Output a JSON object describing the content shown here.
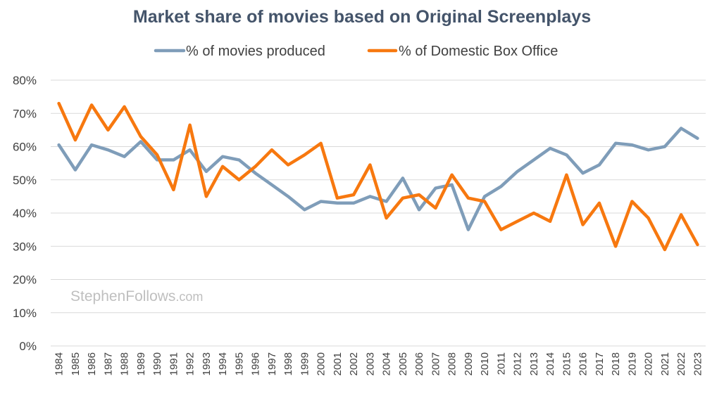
{
  "chart_data": {
    "type": "line",
    "title": "Market share of movies based on Original Screenplays",
    "xlabel": "",
    "ylabel": "",
    "ylim": [
      0,
      80
    ],
    "yticks": [
      0,
      10,
      20,
      30,
      40,
      50,
      60,
      70,
      80
    ],
    "ytick_suffix": "%",
    "grid": true,
    "legend_position": "top-center",
    "x": [
      "1984",
      "1985",
      "1986",
      "1987",
      "1988",
      "1989",
      "1990",
      "1991",
      "1992",
      "1993",
      "1994",
      "1995",
      "1996",
      "1997",
      "1998",
      "1999",
      "2000",
      "2001",
      "2002",
      "2003",
      "2004",
      "2005",
      "2006",
      "2007",
      "2008",
      "2009",
      "2010",
      "2011",
      "2012",
      "2013",
      "2014",
      "2015",
      "2016",
      "2017",
      "2018",
      "2019",
      "2020",
      "2021",
      "2022",
      "2023"
    ],
    "series": [
      {
        "name": "% of movies produced",
        "color": "#7f9db9",
        "values": [
          60.5,
          53,
          60.5,
          59,
          57,
          61.5,
          56,
          56,
          59,
          52.5,
          57,
          56,
          52,
          48.5,
          45,
          41,
          43.5,
          43,
          43,
          45,
          43.5,
          50.5,
          41,
          47.5,
          48.5,
          35,
          45,
          48,
          52.5,
          56,
          59.5,
          57.5,
          52,
          54.5,
          61,
          60.5,
          59,
          60,
          65.5,
          62.5
        ]
      },
      {
        "name": "% of Domestic Box Office",
        "color": "#f7780f",
        "values": [
          73,
          62,
          72.5,
          65,
          72,
          63,
          57.5,
          47,
          66.5,
          45,
          54,
          50,
          54,
          59,
          54.5,
          57.5,
          61,
          44.5,
          45.5,
          54.5,
          38.5,
          44.5,
          45.5,
          41.5,
          51.5,
          44.5,
          43.5,
          35,
          37.5,
          40,
          37.5,
          51.5,
          36.5,
          43,
          30,
          43.5,
          38.5,
          29,
          39.5,
          30.5
        ]
      }
    ]
  },
  "watermark": {
    "main": "StephenFollows",
    "suffix": ".com"
  }
}
